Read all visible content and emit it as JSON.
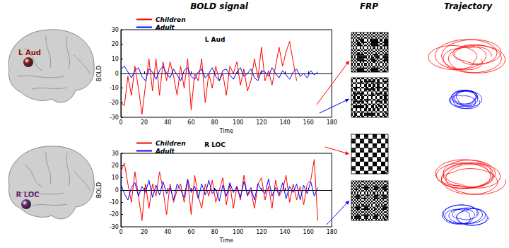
{
  "headers": [
    "BOLD signal",
    "FRP",
    "Trajectory"
  ],
  "brain": [
    {
      "label": "L Aud",
      "color": "#8b1a1a"
    },
    {
      "label": "R LOC",
      "color": "#6a2a7a"
    }
  ],
  "chart_data": [
    {
      "type": "line",
      "title": "L Aud",
      "x_label": "Time",
      "y_label": "BOLD",
      "x": [
        0,
        3,
        6,
        9,
        12,
        15,
        18,
        21,
        24,
        27,
        30,
        33,
        36,
        39,
        42,
        45,
        48,
        51,
        54,
        57,
        60,
        63,
        66,
        69,
        72,
        75,
        78,
        81,
        84,
        87,
        90,
        93,
        96,
        99,
        102,
        105,
        108,
        111,
        114,
        117,
        120,
        123,
        126,
        129,
        132,
        135,
        138,
        141,
        144,
        147,
        150,
        153,
        156,
        159,
        162,
        165,
        168
      ],
      "series": [
        {
          "name": "Children",
          "color": "#ff0000",
          "values": [
            -20,
            -22,
            -2,
            -15,
            5,
            -10,
            -28,
            -8,
            10,
            -12,
            10,
            -15,
            8,
            -5,
            8,
            -2,
            -15,
            5,
            -10,
            10,
            -25,
            0,
            -5,
            10,
            -20,
            0,
            -10,
            5,
            -5,
            0,
            -15,
            5,
            0,
            8,
            -8,
            3,
            -12,
            -5,
            10,
            -3,
            18,
            -5,
            2,
            -8,
            5,
            18,
            5,
            15,
            22,
            8,
            -5,
            null,
            null,
            null,
            null,
            null,
            null
          ]
        },
        {
          "name": "Adult",
          "color": "#0000ff",
          "values": [
            3,
            5,
            1,
            -3,
            2,
            4,
            -2,
            -5,
            3,
            1,
            -4,
            2,
            5,
            0,
            -3,
            3,
            -1,
            -5,
            2,
            4,
            -2,
            -4,
            1,
            3,
            -3,
            0,
            4,
            -2,
            -5,
            2,
            3,
            -1,
            -4,
            1,
            4,
            -2,
            0,
            3,
            -3,
            -5,
            2,
            1,
            -2,
            4,
            0,
            -3,
            2,
            -1,
            -4,
            1,
            3,
            -2,
            0,
            -3,
            2,
            -1,
            1
          ]
        }
      ],
      "xlim": [
        0,
        180
      ],
      "xticks": [
        0,
        20,
        40,
        60,
        80,
        100,
        120,
        140,
        160,
        180
      ],
      "ylim": [
        -30,
        30
      ],
      "yticks": [
        -30,
        -20,
        -10,
        0,
        10,
        20,
        30
      ],
      "legend": "upper left",
      "grid": false
    },
    {
      "type": "line",
      "title": "R LOC",
      "x_label": "Time",
      "y_label": "BOLD",
      "x": [
        0,
        3,
        6,
        9,
        12,
        15,
        18,
        21,
        24,
        27,
        30,
        33,
        36,
        39,
        42,
        45,
        48,
        51,
        54,
        57,
        60,
        63,
        66,
        69,
        72,
        75,
        78,
        81,
        84,
        87,
        90,
        93,
        96,
        99,
        102,
        105,
        108,
        111,
        114,
        117,
        120,
        123,
        126,
        129,
        132,
        135,
        138,
        141,
        144,
        147,
        150,
        153,
        156,
        159,
        162,
        165,
        168
      ],
      "series": [
        {
          "name": "Children",
          "color": "#ff0000",
          "values": [
            15,
            22,
            5,
            -10,
            15,
            -5,
            -25,
            5,
            -15,
            5,
            -5,
            15,
            0,
            -20,
            5,
            -10,
            0,
            5,
            -10,
            8,
            -20,
            12,
            -5,
            -15,
            5,
            -5,
            8,
            -10,
            0,
            10,
            -12,
            5,
            -15,
            3,
            -8,
            12,
            -5,
            0,
            -15,
            5,
            10,
            -8,
            3,
            -15,
            8,
            -5,
            0,
            12,
            -10,
            5,
            -8,
            3,
            -12,
            5,
            8,
            25,
            -25
          ]
        },
        {
          "name": "Adult",
          "color": "#0000ff",
          "values": [
            5,
            -3,
            -8,
            2,
            6,
            -5,
            3,
            -2,
            8,
            -6,
            4,
            -4,
            7,
            -3,
            2,
            -8,
            5,
            0,
            -6,
            9,
            -2,
            3,
            -7,
            5,
            -4,
            8,
            -3,
            1,
            -9,
            4,
            -5,
            6,
            -2,
            3,
            -6,
            7,
            -4,
            2,
            -8,
            5,
            0,
            -3,
            9,
            -5,
            2,
            -4,
            6,
            -7,
            3,
            -2,
            5,
            -8,
            4,
            -3,
            7,
            -5,
            2
          ]
        }
      ],
      "xlim": [
        0,
        180
      ],
      "xticks": [
        0,
        20,
        40,
        60,
        80,
        100,
        120,
        140,
        160,
        180
      ],
      "ylim": [
        -30,
        30
      ],
      "yticks": [
        -30,
        -20,
        -10,
        0,
        10,
        20,
        30
      ],
      "legend": "upper left",
      "grid": false
    }
  ]
}
